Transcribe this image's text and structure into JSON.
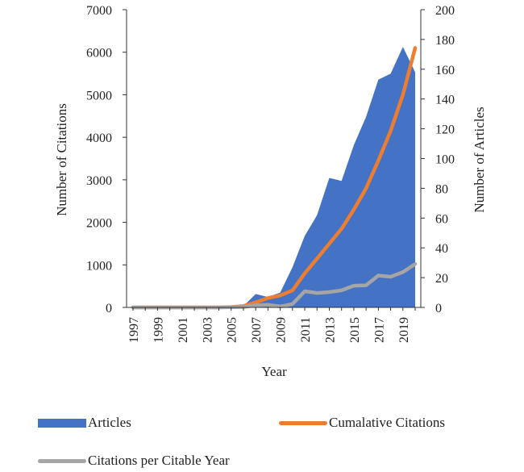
{
  "chart_data": {
    "type": "area",
    "xlabel": "Year",
    "ylabel_left": "Number of Citations",
    "ylabel_right": "Number of Articles",
    "ylim_left": [
      0,
      7000
    ],
    "ylim_right": [
      0,
      200
    ],
    "yticks_left": [
      "0",
      "1000",
      "2000",
      "3000",
      "4000",
      "5000",
      "6000",
      "7000"
    ],
    "yticks_right": [
      "0",
      "20",
      "40",
      "60",
      "80",
      "100",
      "120",
      "140",
      "160",
      "180",
      "200"
    ],
    "x": [
      1997,
      1998,
      1999,
      2000,
      2001,
      2002,
      2003,
      2004,
      2005,
      2006,
      2007,
      2008,
      2009,
      2010,
      2011,
      2012,
      2013,
      2014,
      2015,
      2016,
      2017,
      2018,
      2019,
      2020
    ],
    "xtick_labels": [
      "1997",
      "1999",
      "2001",
      "2003",
      "2005",
      "2007",
      "2009",
      "2011",
      "2013",
      "2015",
      "2017",
      "2019"
    ],
    "series": [
      {
        "name": "Articles",
        "kind": "area",
        "axis": "right",
        "color": "#4472C4",
        "values": [
          0,
          0,
          0,
          0,
          0,
          0,
          0,
          0,
          1,
          1,
          9,
          7,
          10,
          27,
          48,
          62,
          87,
          85,
          109,
          128,
          153,
          157,
          175,
          158
        ]
      },
      {
        "name": "Cumalative Citations",
        "kind": "line",
        "axis": "left",
        "color": "#ED7D31",
        "values": [
          0,
          0,
          0,
          0,
          0,
          0,
          0,
          0,
          10,
          30,
          120,
          220,
          280,
          400,
          800,
          1150,
          1500,
          1850,
          2300,
          2800,
          3450,
          4150,
          5000,
          6100
        ]
      },
      {
        "name": "Citations per Citable Year",
        "kind": "line",
        "axis": "left",
        "color": "#A5A5A5",
        "values": [
          0,
          0,
          0,
          0,
          0,
          0,
          0,
          0,
          5,
          10,
          50,
          60,
          20,
          80,
          380,
          340,
          360,
          400,
          510,
          520,
          750,
          720,
          830,
          1020
        ]
      }
    ],
    "legend_position": "bottom",
    "grid": false
  }
}
